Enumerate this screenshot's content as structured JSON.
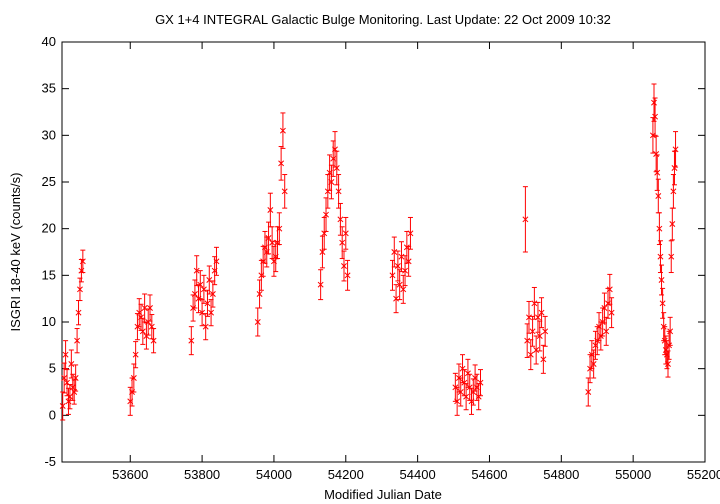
{
  "chart_data": {
    "type": "scatter",
    "title": "GX 1+4   INTEGRAL Galactic Bulge Monitoring.  Last Update: 22 Oct 2009 10:32",
    "xlabel": "Modified Julian Date",
    "ylabel": "ISGRI 18-40 keV (counts/s)",
    "xlim": [
      53410,
      55200
    ],
    "ylim": [
      -5,
      40
    ],
    "xticks": [
      53600,
      53800,
      54000,
      54200,
      54400,
      54600,
      54800,
      55000,
      55200
    ],
    "yticks": [
      -5,
      0,
      5,
      10,
      15,
      20,
      25,
      30,
      35,
      40
    ],
    "grid": false,
    "marker": "x",
    "error_bars": true,
    "color": "#ff0000",
    "series": [
      {
        "x": [
          53412,
          53416,
          53420,
          53424,
          53428,
          53432,
          53436,
          53440,
          53444,
          53448,
          53452,
          53456,
          53460,
          53464,
          53468
        ],
        "y": [
          1.0,
          4.0,
          6.5,
          3.5,
          1.5,
          2.0,
          5.5,
          3.0,
          2.5,
          4.0,
          8.0,
          11.0,
          13.5,
          15.5,
          16.5
        ],
        "err": [
          1.5,
          1.6,
          1.5,
          1.4,
          1.4,
          1.3,
          1.5,
          1.4,
          1.3,
          1.4,
          1.3,
          1.3,
          1.2,
          1.2,
          1.2
        ]
      },
      {
        "x": [
          53600,
          53605,
          53610,
          53615,
          53620,
          53625,
          53630,
          53635,
          53640,
          53645,
          53650,
          53655,
          53660,
          53665
        ],
        "y": [
          1.5,
          2.5,
          4.0,
          6.5,
          9.5,
          11.0,
          10.5,
          9.0,
          11.5,
          8.5,
          10.0,
          11.5,
          9.5,
          8.0
        ],
        "err": [
          1.5,
          1.5,
          1.5,
          1.4,
          1.4,
          1.5,
          1.4,
          1.4,
          1.5,
          1.4,
          1.4,
          1.4,
          1.3,
          1.3
        ]
      },
      {
        "x": [
          53770,
          53775,
          53780,
          53785,
          53790,
          53795,
          53800,
          53805,
          53810,
          53815,
          53820,
          53825,
          53830,
          53835,
          53840
        ],
        "y": [
          8.0,
          11.5,
          13.0,
          15.5,
          12.5,
          14.0,
          11.0,
          13.5,
          9.5,
          12.0,
          14.5,
          11.0,
          13.0,
          15.5,
          16.5
        ],
        "err": [
          1.5,
          1.4,
          1.5,
          1.6,
          1.5,
          1.5,
          1.4,
          1.5,
          1.4,
          1.4,
          1.5,
          1.4,
          1.4,
          1.5,
          1.5
        ]
      },
      {
        "x": [
          53955,
          53960,
          53965,
          53970,
          53975,
          53980,
          53985,
          53990,
          53995,
          54000,
          54005,
          54010,
          54015,
          54020,
          54025,
          54030
        ],
        "y": [
          10.0,
          13.0,
          15.0,
          16.5,
          18.0,
          17.5,
          19.0,
          22.0,
          18.5,
          16.5,
          17.0,
          18.5,
          20.0,
          27.0,
          30.5,
          24.0
        ],
        "err": [
          1.5,
          1.5,
          1.6,
          1.6,
          1.7,
          1.6,
          1.7,
          1.8,
          1.7,
          1.6,
          1.6,
          1.7,
          1.7,
          1.8,
          1.9,
          1.8
        ]
      },
      {
        "x": [
          54130,
          54135,
          54140,
          54145,
          54150,
          54155,
          54160,
          54165,
          54170,
          54175,
          54180,
          54185,
          54190,
          54195,
          54200,
          54205
        ],
        "y": [
          14.0,
          17.5,
          19.5,
          21.5,
          24.0,
          26.0,
          25.0,
          27.5,
          28.5,
          26.5,
          24.0,
          21.0,
          18.5,
          16.0,
          19.5,
          15.0
        ],
        "err": [
          1.6,
          1.7,
          1.7,
          1.8,
          1.8,
          1.9,
          1.8,
          1.9,
          1.9,
          1.8,
          1.8,
          1.7,
          1.7,
          1.6,
          1.7,
          1.6
        ]
      },
      {
        "x": [
          54330,
          54335,
          54340,
          54345,
          54350,
          54355,
          54360,
          54365,
          54370,
          54375,
          54380
        ],
        "y": [
          15.0,
          17.5,
          12.5,
          16.0,
          14.0,
          17.0,
          13.5,
          15.5,
          18.0,
          16.5,
          19.5
        ],
        "err": [
          1.6,
          1.6,
          1.5,
          1.6,
          1.6,
          1.6,
          1.5,
          1.6,
          1.7,
          1.6,
          1.7
        ]
      },
      {
        "x": [
          54505,
          54510,
          54515,
          54520,
          54525,
          54530,
          54535,
          54540,
          54545,
          54550,
          54555,
          54560,
          54565,
          54570,
          54575
        ],
        "y": [
          3.0,
          1.5,
          4.0,
          2.5,
          5.0,
          3.5,
          2.0,
          4.5,
          3.0,
          1.5,
          2.5,
          4.0,
          3.0,
          2.0,
          3.5
        ],
        "err": [
          1.5,
          1.5,
          1.5,
          1.5,
          1.5,
          1.4,
          1.4,
          1.5,
          1.4,
          1.4,
          1.4,
          1.4,
          1.4,
          1.4,
          1.4
        ]
      },
      {
        "x": [
          54700,
          54705,
          54710,
          54715,
          54720,
          54725,
          54730,
          54735,
          54740,
          54745,
          54750,
          54755
        ],
        "y": [
          21.0,
          8.0,
          10.5,
          6.5,
          9.0,
          12.0,
          7.0,
          10.5,
          8.5,
          11.0,
          6.0,
          9.0
        ],
        "err": [
          3.5,
          1.8,
          1.7,
          1.6,
          1.6,
          1.7,
          1.5,
          1.6,
          1.6,
          1.6,
          1.5,
          1.6
        ]
      },
      {
        "x": [
          54875,
          54880,
          54885,
          54890,
          54895,
          54900,
          54905,
          54910,
          54915,
          54920,
          54925,
          54930,
          54935,
          54940
        ],
        "y": [
          2.5,
          5.0,
          6.5,
          5.5,
          7.5,
          8.0,
          9.5,
          8.5,
          10.0,
          11.5,
          9.0,
          12.0,
          13.5,
          11.0
        ],
        "err": [
          1.5,
          1.5,
          1.5,
          1.5,
          1.5,
          1.5,
          1.5,
          1.5,
          1.5,
          1.6,
          1.5,
          1.6,
          1.6,
          1.6
        ]
      },
      {
        "x": [
          55055,
          55058,
          55061,
          55064,
          55067,
          55070,
          55073,
          55076,
          55079,
          55082,
          55085,
          55088,
          55091,
          55094,
          55097,
          55100,
          55103,
          55106,
          55109,
          55112,
          55115,
          55118
        ],
        "y": [
          30.0,
          33.5,
          32.0,
          28.0,
          26.0,
          23.5,
          20.0,
          17.0,
          14.5,
          12.0,
          9.5,
          8.0,
          7.0,
          6.5,
          5.5,
          7.5,
          9.0,
          17.0,
          20.5,
          24.0,
          26.5,
          28.5
        ],
        "err": [
          1.9,
          2.0,
          2.0,
          1.9,
          1.9,
          1.8,
          1.7,
          1.7,
          1.6,
          1.6,
          1.5,
          1.5,
          1.5,
          1.5,
          1.4,
          1.5,
          1.5,
          1.7,
          1.7,
          1.8,
          1.8,
          1.9
        ]
      }
    ]
  }
}
